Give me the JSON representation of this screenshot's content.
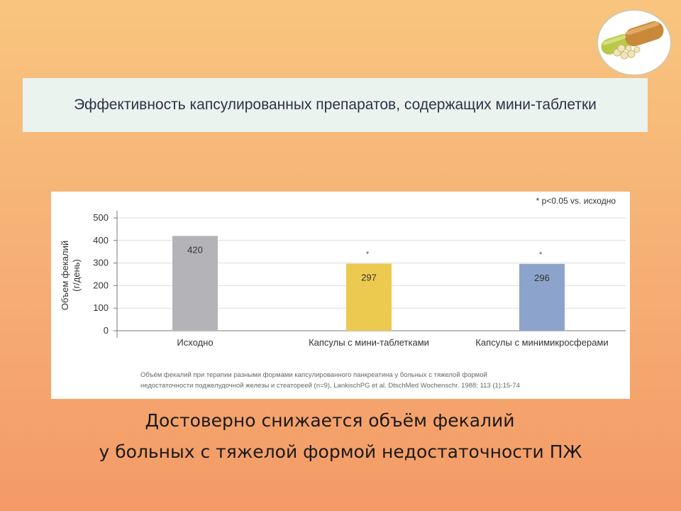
{
  "slide": {
    "title": "Эффективность капсулированных препаратов, содержащих мини-таблетки",
    "caption_line1": "Достоверно снижается объём фекалий",
    "caption_line2": "у больных с тяжелой формой недостаточности ПЖ",
    "logo_icon": "capsule-pills-icon"
  },
  "chart_data": {
    "type": "bar",
    "categories": [
      "Исходно",
      "Капсулы с мини-таблетками",
      "Капсулы с минимикросферами"
    ],
    "values": [
      420,
      297,
      296
    ],
    "data_labels": [
      "420",
      "297",
      "296"
    ],
    "significance_marks": [
      "",
      "*",
      "*"
    ],
    "colors": [
      "#b4b4b8",
      "#ecc94f",
      "#8ca3cc"
    ],
    "ylabel": "Объем фекалий (г/день)",
    "ylabel_lines": [
      "Объем фекалий",
      "(г/день)"
    ],
    "yticks": [
      0,
      100,
      200,
      300,
      400,
      500
    ],
    "ylim": [
      0,
      500
    ],
    "grid": true,
    "legend_note": "* p<0.05 vs. исходно",
    "source_note_line1": "Объём фекалий при терапии разными формами капсулированного панкреатина у больных с тяжелой формой",
    "source_note_line2": "недостаточности поджелудочной железы и стеатореей (n=9), LankischPG et al. DtschMed Wochenschr. 1988; 113 (1):15-74"
  }
}
